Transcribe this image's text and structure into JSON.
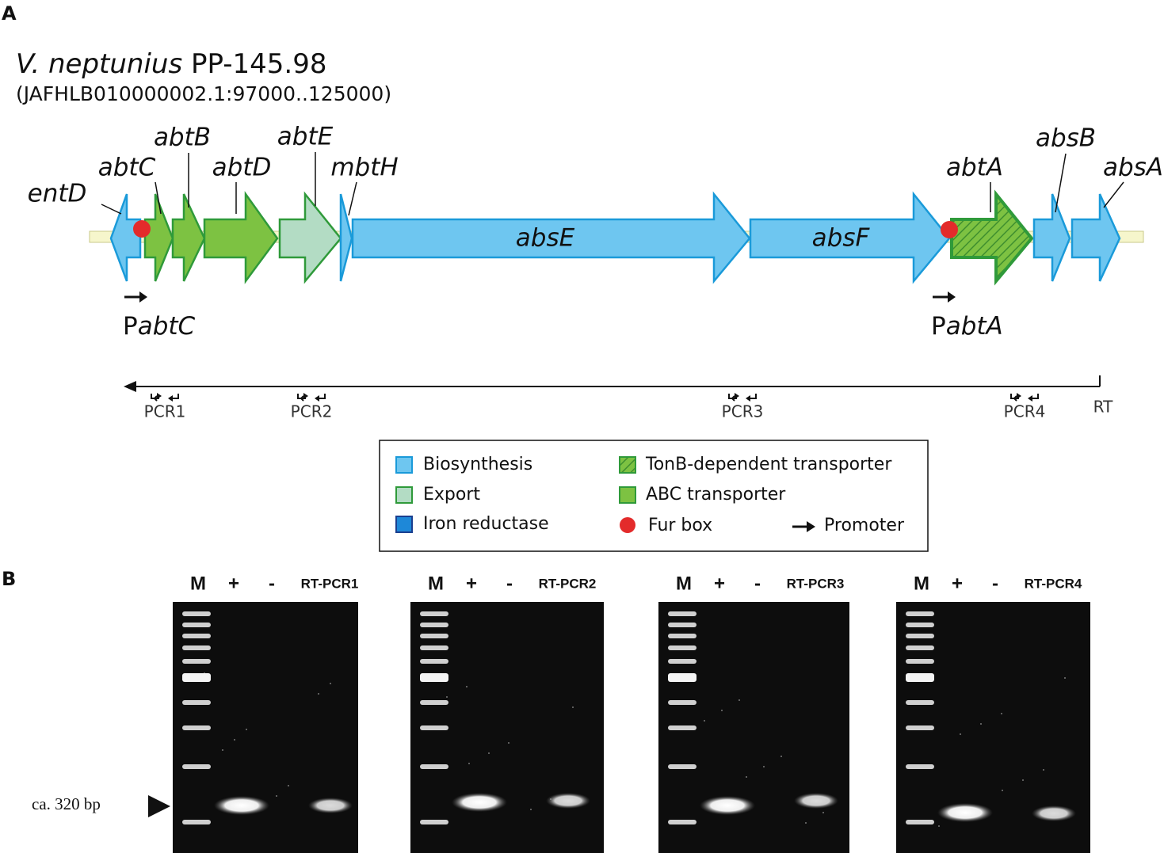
{
  "panel_a": {
    "label": "A",
    "organism": {
      "species": "V. neptunius",
      "strain": "PP-145.98"
    },
    "locus": "(JAFHLB010000002.1:97000..125000)",
    "genes": [
      "entD",
      "abtC",
      "abtB",
      "abtD",
      "abtE",
      "mbtH",
      "absE",
      "absF",
      "abtA",
      "absB",
      "absA"
    ],
    "promoters": [
      {
        "prefix": "P",
        "gene": "abtC"
      },
      {
        "prefix": "P",
        "gene": "abtA"
      }
    ],
    "pcr_labels": [
      "PCR1",
      "PCR2",
      "PCR3",
      "PCR4"
    ],
    "rt_label": "RT",
    "legend": [
      "Biosynthesis",
      "Export",
      "Iron reductase",
      "TonB-dependent transporter",
      "ABC transporter",
      "Fur box",
      "Promoter"
    ]
  },
  "panel_b": {
    "label": "B",
    "gels": [
      {
        "lanes": [
          "M",
          "+",
          "-",
          "RT-PCR1"
        ]
      },
      {
        "lanes": [
          "M",
          "+",
          "-",
          "RT-PCR2"
        ]
      },
      {
        "lanes": [
          "M",
          "+",
          "-",
          "RT-PCR3"
        ]
      },
      {
        "lanes": [
          "M",
          "+",
          "-",
          "RT-PCR4"
        ]
      }
    ],
    "size_marker": "ca. 320 bp"
  }
}
